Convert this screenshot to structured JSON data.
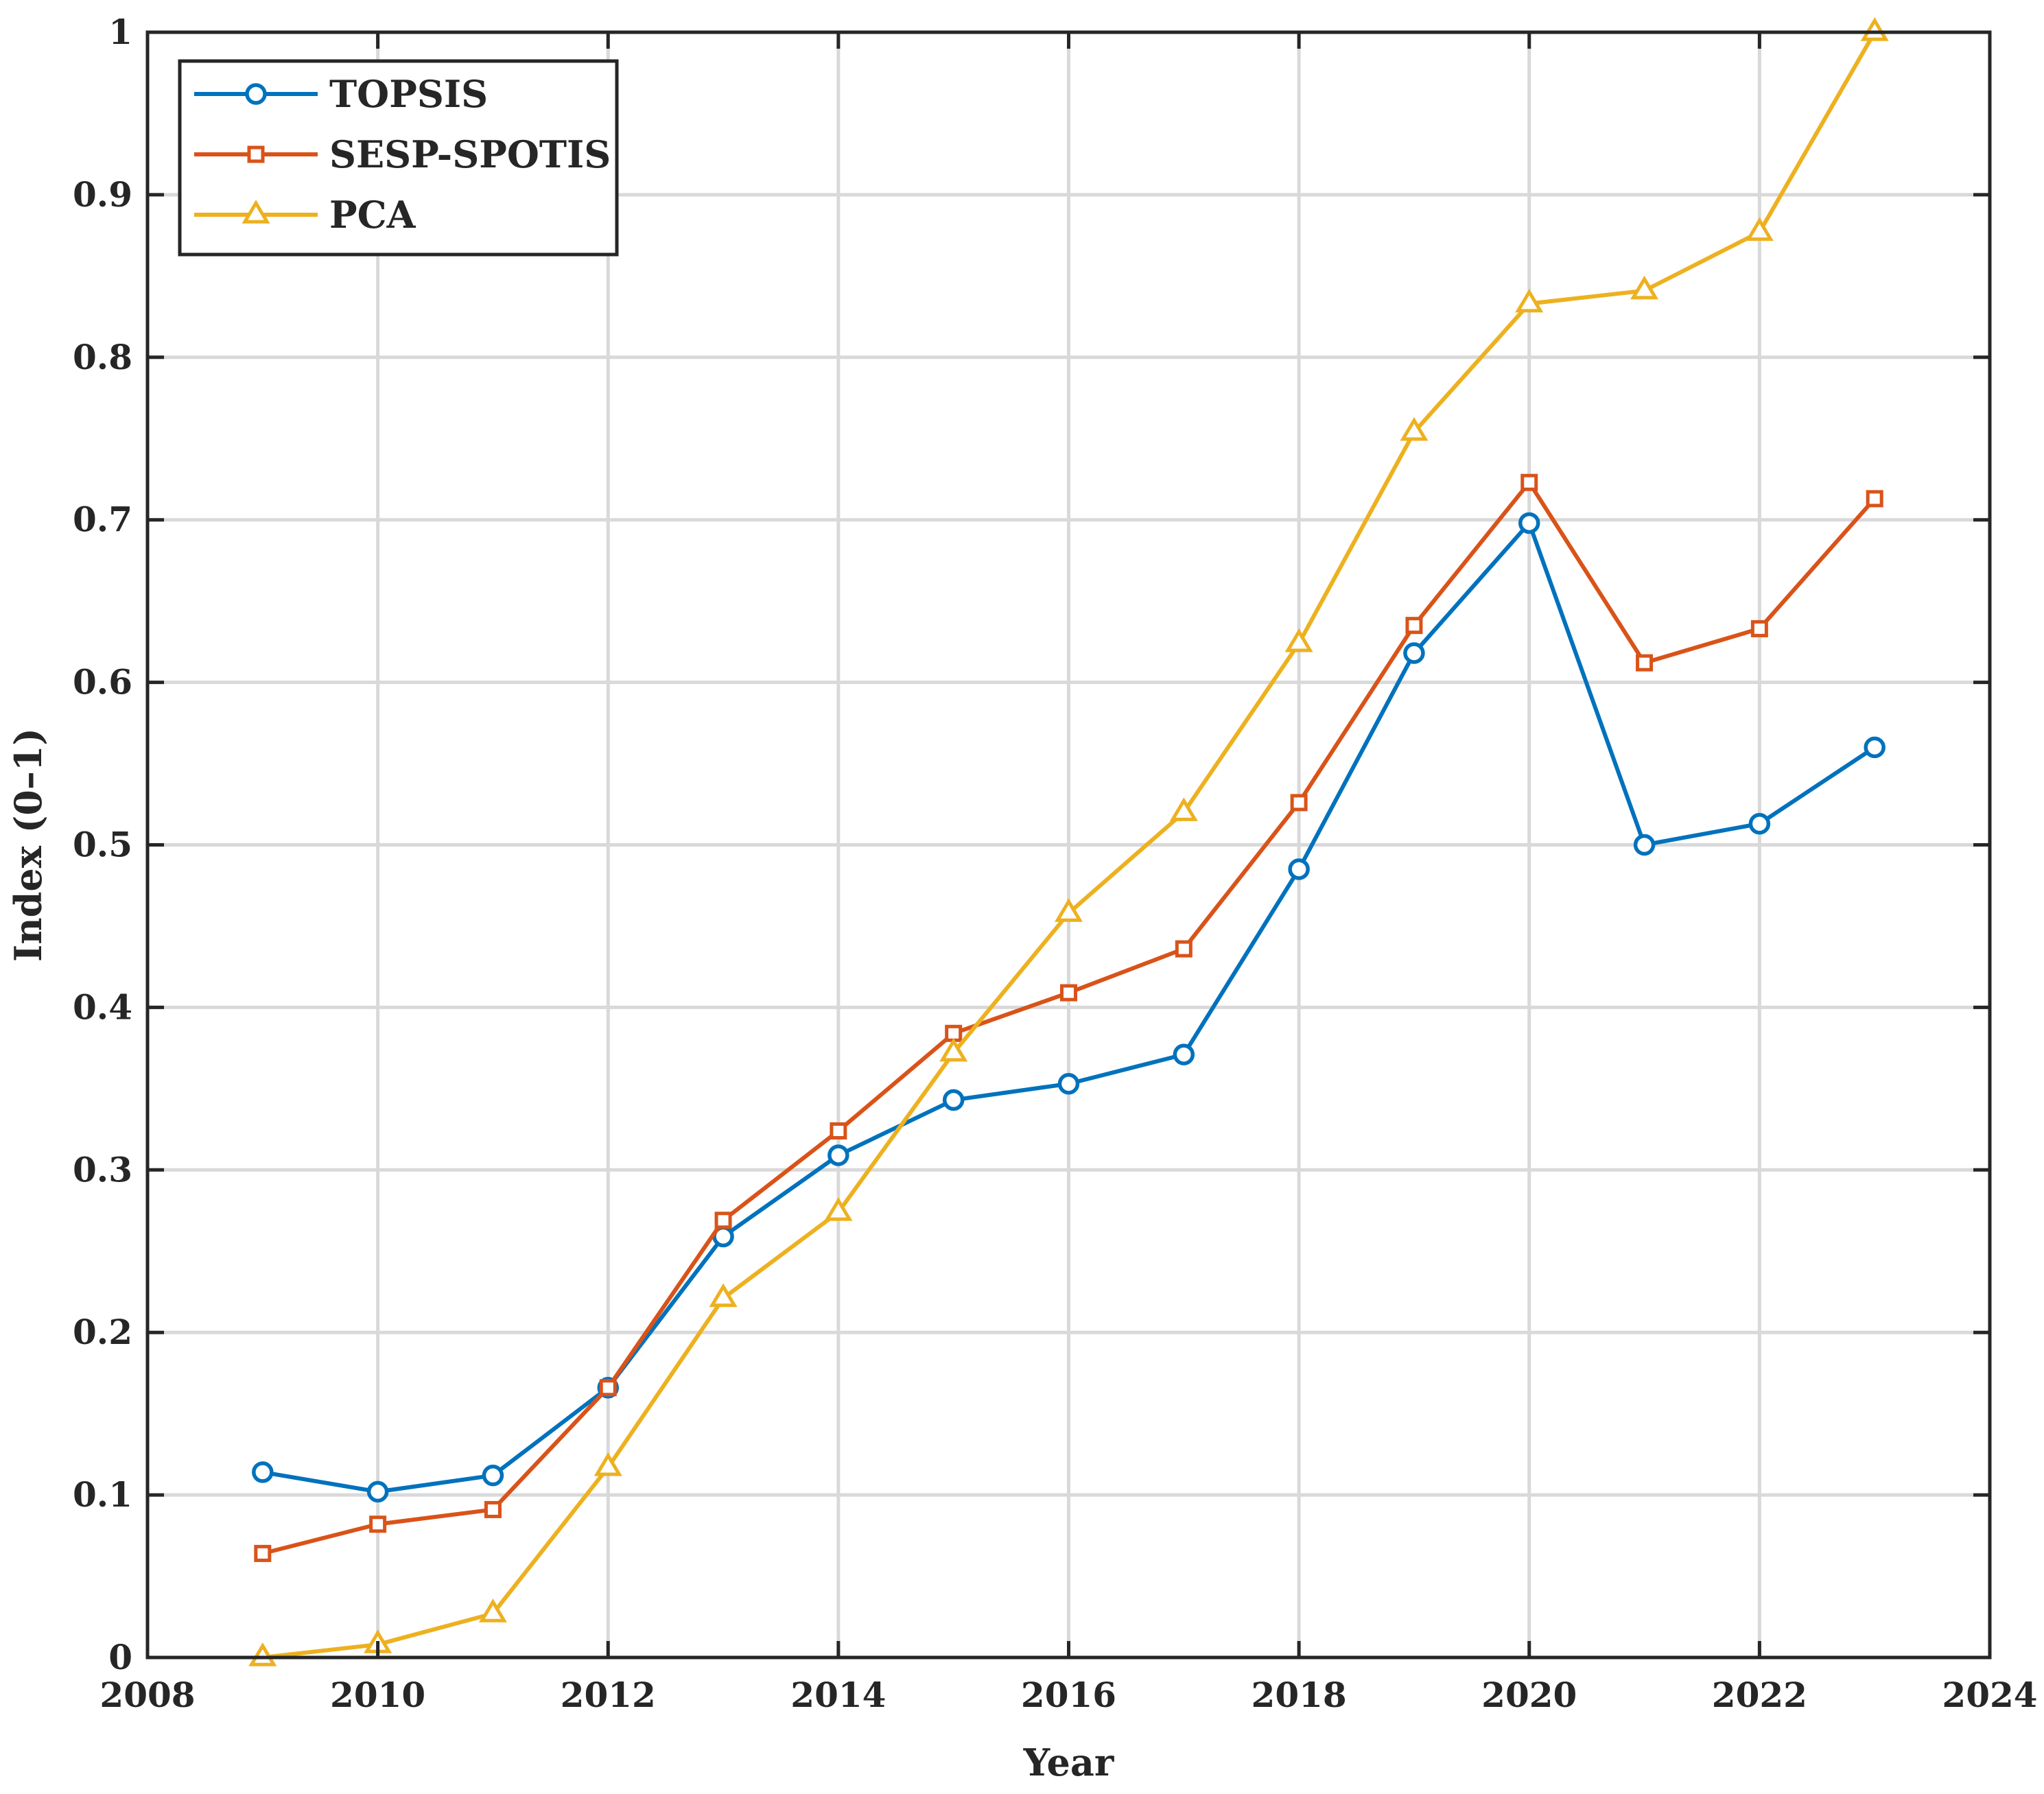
{
  "chart_data": {
    "type": "line",
    "title": "",
    "xlabel": "Year",
    "ylabel": "Index (0–1)",
    "xlim": [
      2008,
      2024
    ],
    "ylim": [
      0,
      1
    ],
    "xticks": [
      2008,
      2010,
      2012,
      2014,
      2016,
      2018,
      2020,
      2022,
      2024
    ],
    "yticks": [
      0,
      0.1,
      0.2,
      0.3,
      0.4,
      0.5,
      0.6,
      0.7,
      0.8,
      0.9,
      1
    ],
    "xtick_labels": [
      "2008",
      "2010",
      "2012",
      "2014",
      "2016",
      "2018",
      "2020",
      "2022",
      "2024"
    ],
    "ytick_labels": [
      "0",
      "0.1",
      "0.2",
      "0.3",
      "0.4",
      "0.5",
      "0.6",
      "0.7",
      "0.8",
      "0.9",
      "1"
    ],
    "grid": true,
    "legend_position": "top-left",
    "x": [
      2009,
      2010,
      2011,
      2012,
      2013,
      2014,
      2015,
      2016,
      2017,
      2018,
      2019,
      2020,
      2021,
      2022,
      2023
    ],
    "series": [
      {
        "name": "TOPSIS",
        "color": "#0072BD",
        "marker": "circle",
        "values": [
          0.114,
          0.102,
          0.112,
          0.166,
          0.259,
          0.309,
          0.343,
          0.353,
          0.371,
          0.485,
          0.618,
          0.698,
          0.5,
          0.513,
          0.56
        ]
      },
      {
        "name": "SESP-SPOTIS",
        "color": "#D95319",
        "marker": "square",
        "values": [
          0.064,
          0.082,
          0.091,
          0.166,
          0.269,
          0.324,
          0.384,
          0.409,
          0.436,
          0.526,
          0.635,
          0.723,
          0.612,
          0.633,
          0.713
        ]
      },
      {
        "name": "PCA",
        "color": "#EDB120",
        "marker": "triangle",
        "values": [
          0.0,
          0.008,
          0.027,
          0.117,
          0.221,
          0.274,
          0.372,
          0.458,
          0.52,
          0.624,
          0.754,
          0.833,
          0.841,
          0.877,
          1.0
        ]
      }
    ]
  }
}
